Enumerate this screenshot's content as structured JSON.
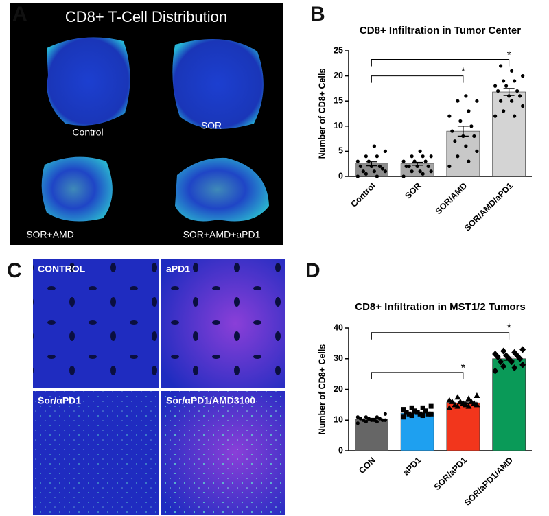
{
  "panel_labels": [
    "A",
    "B",
    "C",
    "D"
  ],
  "panel_a": {
    "title": "CD8+ T-Cell Distribution",
    "images": [
      "Control",
      "SOR",
      "SOR+AMD",
      "SOR+AMD+aPD1"
    ]
  },
  "panel_c": {
    "images": [
      "CONTROL",
      "aPD1",
      "Sor/αPD1",
      "Sor/αPD1/AMD3100"
    ]
  },
  "chart_data": [
    {
      "type": "bar",
      "title": "CD8+ Infiltration in Tumor Center",
      "y_label": "Number of CD8+ Cells",
      "categories": [
        "Control",
        "SOR",
        "SOR/AMD",
        "SOR/AMD/aPD1"
      ],
      "values": [
        2.5,
        2.5,
        9,
        16.8
      ],
      "errors": [
        0.4,
        0.3,
        1.0,
        0.7
      ],
      "colors": [
        "#8c8c8c",
        "#a6a6a6",
        "#c8c8c8",
        "#d4d4d4"
      ],
      "markers": [
        "circle",
        "circle",
        "circle",
        "circle"
      ],
      "points": [
        [
          0,
          0,
          0.5,
          1,
          1,
          1,
          1.5,
          2,
          2,
          2,
          3,
          3,
          4,
          4,
          5,
          6
        ],
        [
          0,
          0.5,
          1,
          1,
          1,
          2,
          2,
          2,
          2,
          3,
          3,
          3,
          4,
          4,
          4,
          5
        ],
        [
          2,
          3,
          4,
          5,
          6,
          7,
          8,
          8,
          9,
          10,
          11,
          12,
          13,
          15,
          15,
          16
        ],
        [
          12,
          12,
          13,
          14,
          15,
          15,
          16,
          16,
          17,
          17,
          18,
          18,
          19,
          19,
          20,
          21,
          22
        ]
      ],
      "ylim": [
        0,
        25
      ],
      "yticks": [
        0,
        5,
        10,
        15,
        20,
        25
      ],
      "brackets": [
        {
          "between": [
            "Control",
            "SOR/AMD"
          ],
          "y": 20,
          "label": "*"
        },
        {
          "between": [
            "Control",
            "SOR/AMD/aPD1"
          ],
          "y": 23.3,
          "label": "*"
        }
      ]
    },
    {
      "type": "bar",
      "title": "CD8+ Infiltration in MST1/2 Tumors",
      "y_label": "Number of CD8+ Cells",
      "categories": [
        "CON",
        "aPD1",
        "SOR/aPD1",
        "SOR/aPD1/AMD"
      ],
      "values": [
        10.3,
        12.3,
        15.6,
        30
      ],
      "errors": [
        0.3,
        0.3,
        0.3,
        0.5
      ],
      "colors": [
        "#666666",
        "#1ea0f0",
        "#f2361c",
        "#0a9a58"
      ],
      "markers": [
        "circle",
        "square",
        "triangle",
        "diamond"
      ],
      "points": [
        [
          9,
          9.5,
          9.5,
          10,
          10,
          10,
          10,
          10,
          10.5,
          10.5,
          10.5,
          11,
          11,
          11,
          12
        ],
        [
          11,
          11.5,
          11.5,
          12,
          12,
          12,
          12,
          12.5,
          12.5,
          13,
          13,
          13.5,
          14,
          14,
          14.5
        ],
        [
          14,
          14.5,
          14.5,
          15,
          15,
          15,
          15.5,
          15.5,
          16,
          16,
          16,
          16.5,
          17,
          17.5,
          18
        ],
        [
          26,
          27,
          27.5,
          28,
          29,
          29,
          30,
          30,
          30.5,
          31,
          31,
          31.5,
          32,
          32.5,
          33
        ]
      ],
      "ylim": [
        0,
        40
      ],
      "yticks": [
        0,
        10,
        20,
        30,
        40
      ],
      "brackets": [
        {
          "between": [
            "CON",
            "SOR/aPD1"
          ],
          "y": 25.5,
          "label": "*"
        },
        {
          "between": [
            "CON",
            "SOR/aPD1/AMD"
          ],
          "y": 38.5,
          "label": "*"
        }
      ]
    }
  ]
}
